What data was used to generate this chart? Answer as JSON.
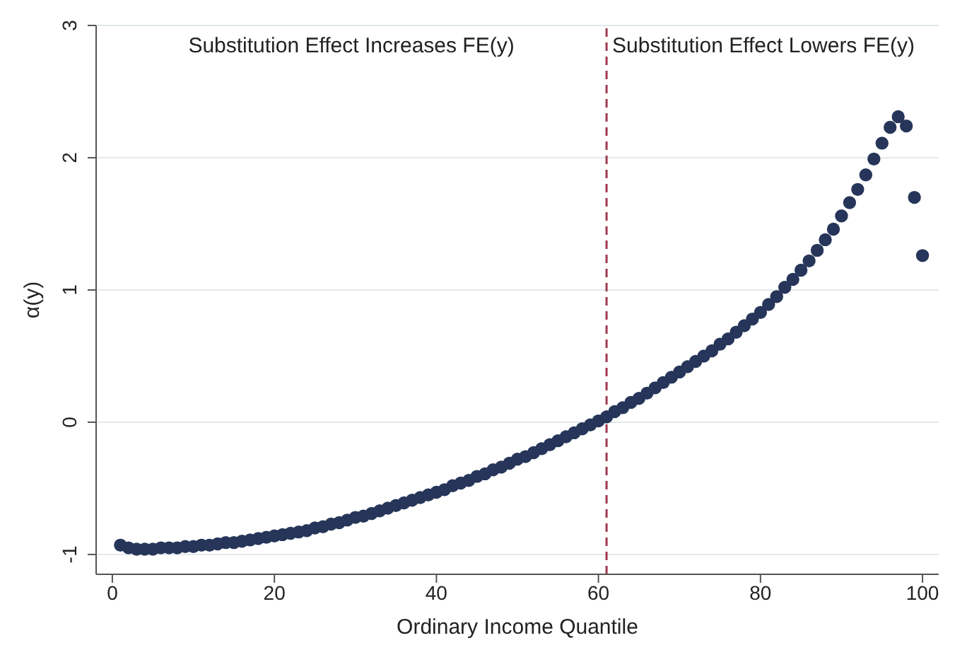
{
  "chart_data": {
    "type": "scatter",
    "xlabel": "Ordinary Income Quantile",
    "ylabel": "α(y)",
    "x": [
      1,
      2,
      3,
      4,
      5,
      6,
      7,
      8,
      9,
      10,
      11,
      12,
      13,
      14,
      15,
      16,
      17,
      18,
      19,
      20,
      21,
      22,
      23,
      24,
      25,
      26,
      27,
      28,
      29,
      30,
      31,
      32,
      33,
      34,
      35,
      36,
      37,
      38,
      39,
      40,
      41,
      42,
      43,
      44,
      45,
      46,
      47,
      48,
      49,
      50,
      51,
      52,
      53,
      54,
      55,
      56,
      57,
      58,
      59,
      60,
      61,
      62,
      63,
      64,
      65,
      66,
      67,
      68,
      69,
      70,
      71,
      72,
      73,
      74,
      75,
      76,
      77,
      78,
      79,
      80,
      81,
      82,
      83,
      84,
      85,
      86,
      87,
      88,
      89,
      90,
      91,
      92,
      93,
      94,
      95,
      96,
      97,
      98,
      99,
      100
    ],
    "series": [
      {
        "color": "#263559",
        "values": [
          -0.93,
          -0.95,
          -0.96,
          -0.96,
          -0.96,
          -0.95,
          -0.95,
          -0.95,
          -0.94,
          -0.94,
          -0.93,
          -0.93,
          -0.92,
          -0.91,
          -0.91,
          -0.9,
          -0.89,
          -0.88,
          -0.87,
          -0.86,
          -0.85,
          -0.84,
          -0.83,
          -0.82,
          -0.8,
          -0.79,
          -0.77,
          -0.76,
          -0.74,
          -0.72,
          -0.71,
          -0.69,
          -0.67,
          -0.65,
          -0.63,
          -0.61,
          -0.59,
          -0.57,
          -0.55,
          -0.53,
          -0.51,
          -0.48,
          -0.46,
          -0.44,
          -0.41,
          -0.39,
          -0.36,
          -0.34,
          -0.31,
          -0.28,
          -0.26,
          -0.23,
          -0.2,
          -0.17,
          -0.14,
          -0.11,
          -0.08,
          -0.05,
          -0.02,
          0.01,
          0.04,
          0.08,
          0.11,
          0.15,
          0.18,
          0.22,
          0.26,
          0.3,
          0.34,
          0.38,
          0.42,
          0.46,
          0.5,
          0.54,
          0.59,
          0.63,
          0.68,
          0.73,
          0.78,
          0.83,
          0.89,
          0.95,
          1.02,
          1.08,
          1.15,
          1.22,
          1.3,
          1.38,
          1.46,
          1.56,
          1.66,
          1.76,
          1.87,
          1.99,
          2.11,
          2.23,
          2.31,
          2.24,
          1.7,
          1.26
        ]
      }
    ],
    "xlim": [
      -2,
      102
    ],
    "xticks": [
      0,
      20,
      40,
      60,
      80,
      100
    ],
    "ylim": [
      -1.15,
      3
    ],
    "yticks": [
      -1,
      0,
      1,
      2,
      3
    ],
    "grid": "y",
    "marker": "circle",
    "ref_lines": [
      {
        "axis": "x",
        "value": 61,
        "color": "#a0394f",
        "line_style": "dashed"
      }
    ],
    "annotations": [
      "Substitution Effect Increases FE(y)",
      "Substitution Effect Lowers FE(y)"
    ]
  }
}
